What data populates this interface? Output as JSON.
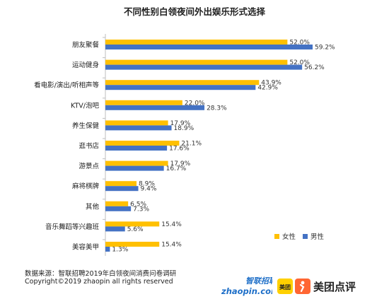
{
  "chart_data": {
    "type": "bar",
    "orientation": "horizontal",
    "title": "不同性别白领夜间外出娱乐形式选择",
    "categories": [
      "朋友聚餐",
      "运动健身",
      "看电影/演出/听相声等",
      "KTV/泡吧",
      "养生保健",
      "逛书店",
      "游景点",
      "麻将棋牌",
      "其他",
      "音乐舞蹈等兴趣班",
      "美容美甲"
    ],
    "series": [
      {
        "name": "女性",
        "color": "#FFC000",
        "values": [
          52.0,
          52.0,
          43.9,
          22.0,
          17.9,
          21.1,
          17.9,
          8.9,
          6.5,
          15.4,
          15.4
        ],
        "labels": [
          "52.0%",
          "52.0%",
          "43.9%",
          "22.0%",
          "17.9%",
          "21.1%",
          "17.9%",
          "8.9%",
          "6.5%",
          "15.4%",
          "15.4%"
        ]
      },
      {
        "name": "男性",
        "color": "#4472C4",
        "values": [
          59.2,
          56.2,
          42.9,
          28.3,
          18.9,
          17.6,
          16.7,
          9.4,
          7.3,
          5.6,
          1.3
        ],
        "labels": [
          "59.2%",
          "56.2%",
          "42.9%",
          "28.3%",
          "18.9%",
          "17.6%",
          "16.7%",
          "9.4%",
          "7.3%",
          "5.6%",
          "1.3%"
        ]
      }
    ],
    "xlim": [
      0,
      70
    ],
    "grid": false,
    "legend_position": "bottom-right"
  },
  "footer": {
    "source": "数据来源：智联招聘2019年白领夜间消费问卷调研",
    "copyright": "Copyright©2019 zhaopin all rights reserved"
  },
  "logos": {
    "zhaopin_cn": "智联招聘",
    "zhaopin_en": "zhaopin.com",
    "meituan_small": "美团",
    "meituan_main": "美团点评"
  }
}
